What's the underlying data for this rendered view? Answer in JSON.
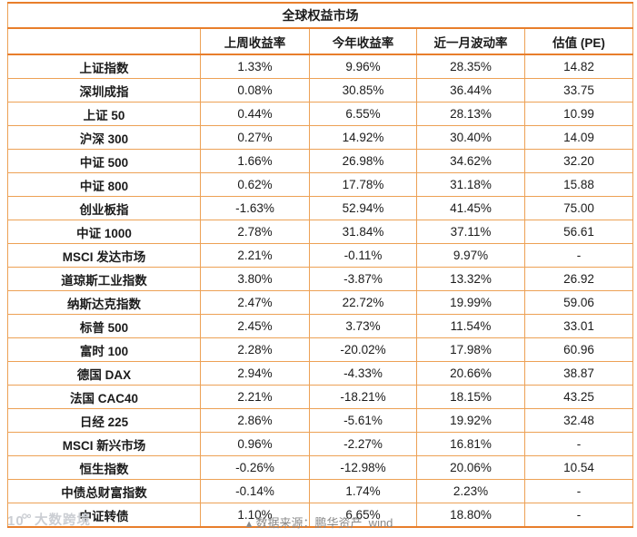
{
  "chart_data": {
    "type": "table",
    "title": "全球权益市场",
    "columns": [
      "",
      "上周收益率",
      "今年收益率",
      "近一月波动率",
      "估值 (PE)"
    ],
    "rows": [
      [
        "上证指数",
        "1.33%",
        "9.96%",
        "28.35%",
        "14.82"
      ],
      [
        "深圳成指",
        "0.08%",
        "30.85%",
        "36.44%",
        "33.75"
      ],
      [
        "上证 50",
        "0.44%",
        "6.55%",
        "28.13%",
        "10.99"
      ],
      [
        "沪深 300",
        "0.27%",
        "14.92%",
        "30.40%",
        "14.09"
      ],
      [
        "中证 500",
        "1.66%",
        "26.98%",
        "34.62%",
        "32.20"
      ],
      [
        "中证 800",
        "0.62%",
        "17.78%",
        "31.18%",
        "15.88"
      ],
      [
        "创业板指",
        "-1.63%",
        "52.94%",
        "41.45%",
        "75.00"
      ],
      [
        "中证 1000",
        "2.78%",
        "31.84%",
        "37.11%",
        "56.61"
      ],
      [
        "MSCI 发达市场",
        "2.21%",
        "-0.11%",
        "9.97%",
        "-"
      ],
      [
        "道琼斯工业指数",
        "3.80%",
        "-3.87%",
        "13.32%",
        "26.92"
      ],
      [
        "纳斯达克指数",
        "2.47%",
        "22.72%",
        "19.99%",
        "59.06"
      ],
      [
        "标普 500",
        "2.45%",
        "3.73%",
        "11.54%",
        "33.01"
      ],
      [
        "富时 100",
        "2.28%",
        "-20.02%",
        "17.98%",
        "60.96"
      ],
      [
        "德国 DAX",
        "2.94%",
        "-4.33%",
        "20.66%",
        "38.87"
      ],
      [
        "法国 CAC40",
        "2.21%",
        "-18.21%",
        "18.15%",
        "43.25"
      ],
      [
        "日经 225",
        "2.86%",
        "-5.61%",
        "19.92%",
        "32.48"
      ],
      [
        "MSCI 新兴市场",
        "0.96%",
        "-2.27%",
        "16.81%",
        "-"
      ],
      [
        "恒生指数",
        "-0.26%",
        "-12.98%",
        "20.06%",
        "10.54"
      ],
      [
        "中债总财富指数",
        "-0.14%",
        "1.74%",
        "2.23%",
        "-"
      ],
      [
        "中证转债",
        "1.10%",
        "6.65%",
        "18.80%",
        "-"
      ]
    ]
  },
  "footer": {
    "marker": "▲",
    "source_text": "数据来源：鹏华资产  wind"
  },
  "watermark": {
    "brand": "大数跨境"
  },
  "colors": {
    "border_heavy": "#E87E2B",
    "border_light": "#EDA155",
    "text": "#1b1b1b",
    "footer_text": "#8a8a8a",
    "watermark": "#cbced3"
  }
}
